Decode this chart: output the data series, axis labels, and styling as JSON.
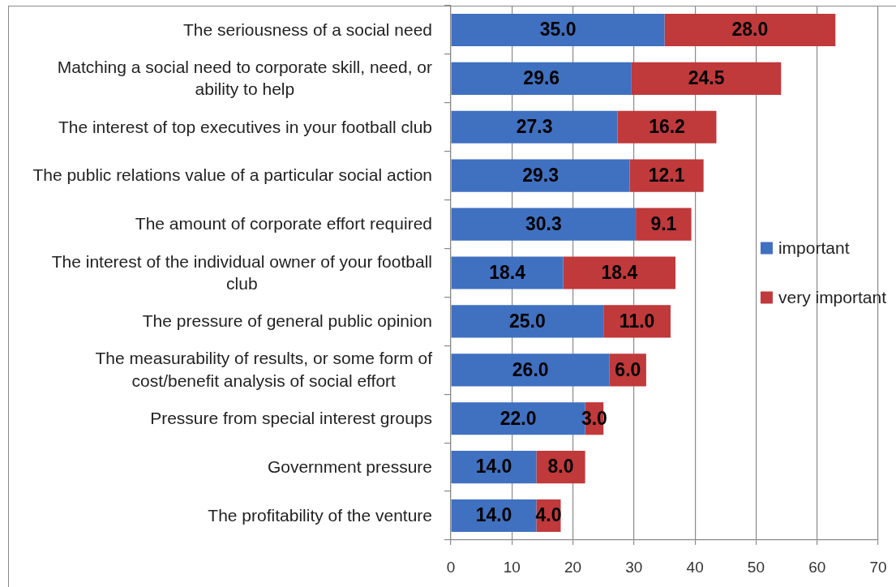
{
  "chart_data": {
    "type": "bar",
    "orientation": "horizontal",
    "stacked": true,
    "categories": [
      "The seriousness of a social need",
      "Matching a social need to corporate skill, need, or ability to help",
      "The interest of top executives in your football club",
      "The public relations value of a particular social action",
      "The amount of corporate effort required",
      "The interest of the individual owner of your football club",
      "The pressure of general public opinion",
      "The measurability of results, or some form of cost/benefit analysis of social effort",
      "Pressure from special interest groups",
      "Government pressure",
      "The profitability of the venture"
    ],
    "series": [
      {
        "name": "important",
        "color": "#4070c0",
        "values": [
          35.0,
          29.6,
          27.3,
          29.3,
          30.3,
          18.4,
          25.0,
          26.0,
          22.0,
          14.0,
          14.0
        ],
        "value_labels": [
          "35.0",
          "29.6",
          "27.3",
          "29.3",
          "30.3",
          "18.4",
          "25.0",
          "26.0",
          "22.0",
          "14.0",
          "14.0"
        ]
      },
      {
        "name": "very important",
        "color": "#c0393b",
        "values": [
          28.0,
          24.5,
          16.2,
          12.1,
          9.1,
          18.4,
          11.0,
          6.0,
          3.0,
          8.0,
          4.0
        ],
        "value_labels": [
          "28.0",
          "24.5",
          "16.2",
          "12.1",
          "9.1",
          "18.4",
          "11.0",
          "6.0",
          "3.0",
          "8.0",
          "4.0"
        ]
      }
    ],
    "xlim": [
      0,
      70
    ],
    "xticks": [
      0,
      10,
      20,
      30,
      40,
      50,
      60,
      70
    ],
    "grid": "x",
    "legend": "right"
  }
}
